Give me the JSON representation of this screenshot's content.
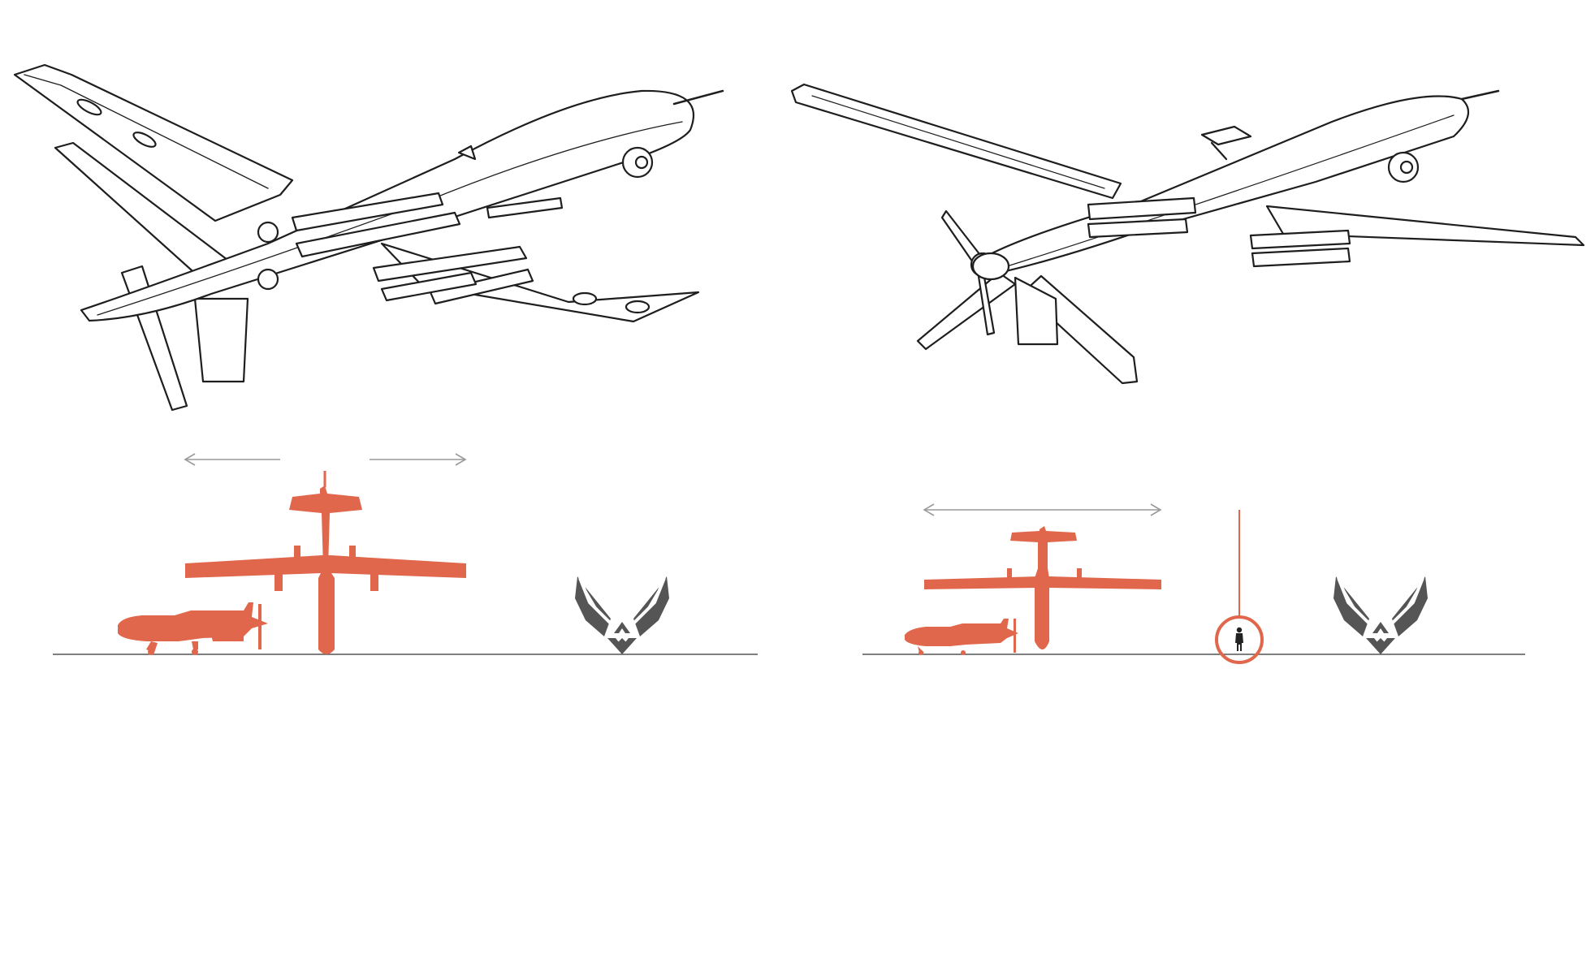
{
  "colors": {
    "silhouette": "#e0674b",
    "logo": "#555555",
    "line_art": "#1e1e1e",
    "arrow": "#9a9a9a",
    "ground": "#555555",
    "person": "#222222"
  },
  "panels": [
    {
      "drawing": "drone-line-drawing-left",
      "silhouettes": [
        "small-drone-silhouette",
        "large-drone-planform-silhouette"
      ],
      "wingspan_arrow": "split-double-arrow",
      "logo": "air-force-wings-icon"
    },
    {
      "drawing": "drone-line-drawing-right",
      "silhouettes": [
        "small-drone-silhouette",
        "large-drone-planform-silhouette"
      ],
      "wingspan_arrow": "double-arrow",
      "human_scale": "person-in-circle-icon",
      "logo": "air-force-wings-icon"
    }
  ]
}
